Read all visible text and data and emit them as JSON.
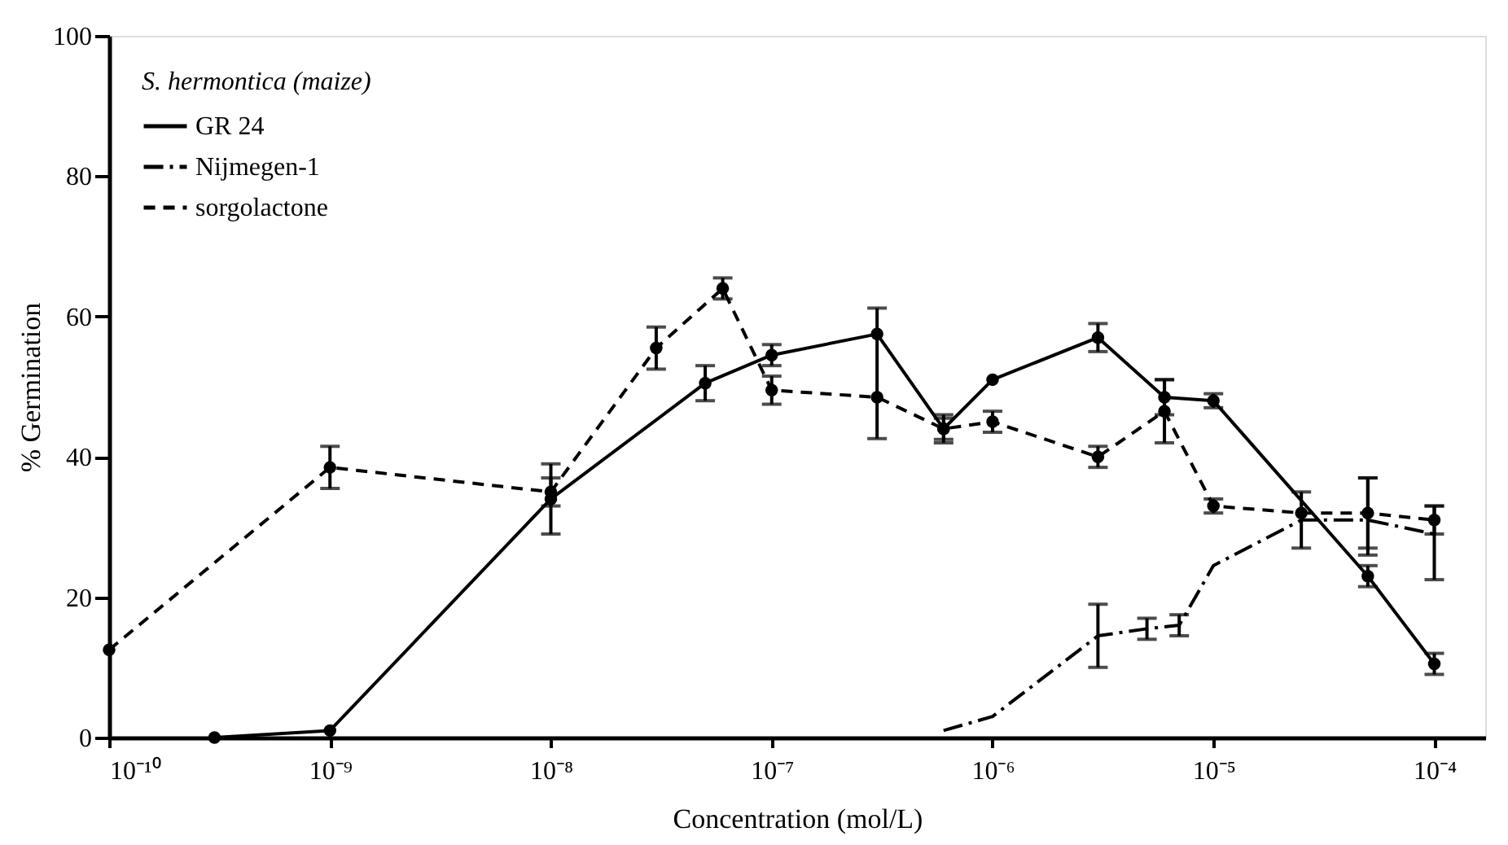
{
  "chart_data": {
    "type": "line",
    "xlabel": "Concentration (mol/L)",
    "ylabel": "% Germination",
    "legend_title": "S. hermontica (maize)",
    "log": "x",
    "legend": "top left",
    "grid": false,
    "xlim": [
      1e-10,
      0.00017
    ],
    "xticks": [
      {
        "value": 1e-10,
        "label": "10⁻¹⁰"
      },
      {
        "value": 1e-09,
        "label": "10⁻⁹"
      },
      {
        "value": 1e-08,
        "label": "10⁻⁸"
      },
      {
        "value": 1e-07,
        "label": "10⁻⁷"
      },
      {
        "value": 1e-06,
        "label": "10⁻⁶"
      },
      {
        "value": 1e-05,
        "label": "10⁻⁵"
      },
      {
        "value": 0.0001,
        "label": "10⁻⁴"
      }
    ],
    "ylim": [
      0,
      100
    ],
    "yticks": [
      0,
      20,
      40,
      60,
      80,
      100
    ],
    "series": [
      {
        "name": "GR 24",
        "color": "#000000",
        "line_style": "solid",
        "marker": "circle",
        "x": [
          3e-10,
          1e-09,
          1e-08,
          5e-08,
          1e-07,
          3e-07,
          6e-07,
          1e-06,
          3e-06,
          6e-06,
          1e-05,
          5e-05,
          0.0001
        ],
        "values": [
          0,
          1,
          34,
          50.5,
          54.5,
          57.5,
          44,
          51,
          57,
          48.5,
          48,
          23,
          10.5
        ],
        "errors": [
          null,
          null,
          5,
          2.5,
          1.5,
          [
            42.6,
            61.2
          ],
          2,
          null,
          2,
          2.5,
          1,
          1.5,
          1.5
        ]
      },
      {
        "name": "Nijmegen-1",
        "color": "#000000",
        "line_style": "dashdot",
        "marker": "none",
        "x": [
          6e-07,
          1e-06,
          3e-06,
          5e-06,
          7e-06,
          1e-05,
          2.5e-05,
          5e-05,
          0.0001
        ],
        "values": [
          1,
          3,
          14.5,
          15.5,
          16,
          24.5,
          31,
          31,
          29
        ],
        "errors": [
          null,
          null,
          4.5,
          1.5,
          1.5,
          null,
          [
            27,
            35
          ],
          [
            26,
            37
          ],
          [
            22.5,
            33
          ]
        ]
      },
      {
        "name": "sorgolactone",
        "color": "#000000",
        "line_style": "dashed",
        "marker": "circle",
        "x": [
          1e-10,
          1e-09,
          1e-08,
          3e-08,
          6e-08,
          1e-07,
          3e-07,
          6e-07,
          1e-06,
          3e-06,
          6e-06,
          1e-05,
          2.5e-05,
          5e-05,
          0.0001
        ],
        "values": [
          12.5,
          38.5,
          35,
          55.5,
          64,
          49.5,
          48.5,
          44,
          45,
          40,
          46.5,
          33,
          32,
          32,
          31
        ],
        "errors": [
          null,
          3,
          2,
          3,
          1.5,
          2,
          null,
          1.5,
          1.5,
          1.5,
          [
            42,
            51
          ],
          1,
          null,
          5,
          2
        ]
      }
    ]
  }
}
